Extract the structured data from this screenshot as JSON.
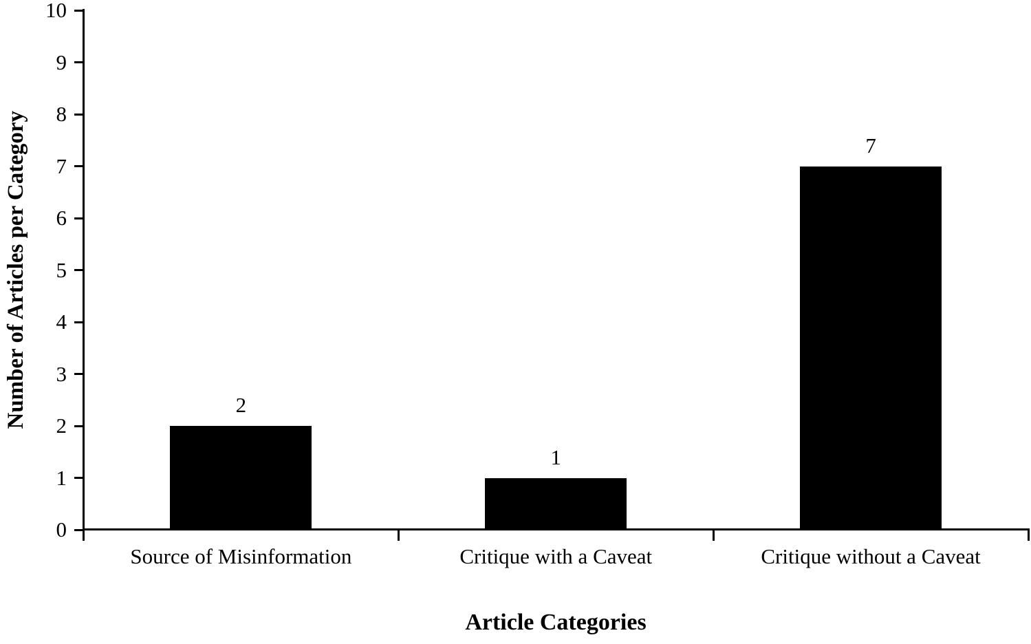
{
  "chart_data": {
    "type": "bar",
    "title": "",
    "categories": [
      "Source of Misinformation",
      "Critique with a Caveat",
      "Critique without a Caveat"
    ],
    "values": [
      2,
      1,
      7
    ],
    "data_labels": [
      "2",
      "1",
      "7"
    ],
    "xlabel": "Article Categories",
    "ylabel": "Number of Articles per Category",
    "ylim": [
      0,
      10
    ],
    "yticks": [
      0,
      1,
      2,
      3,
      4,
      5,
      6,
      7,
      8,
      9,
      10
    ],
    "grid": false,
    "legend": false,
    "bar_color": "#000000",
    "axis_color": "#000000",
    "text_color": "#000000",
    "background_color": "#ffffff"
  }
}
